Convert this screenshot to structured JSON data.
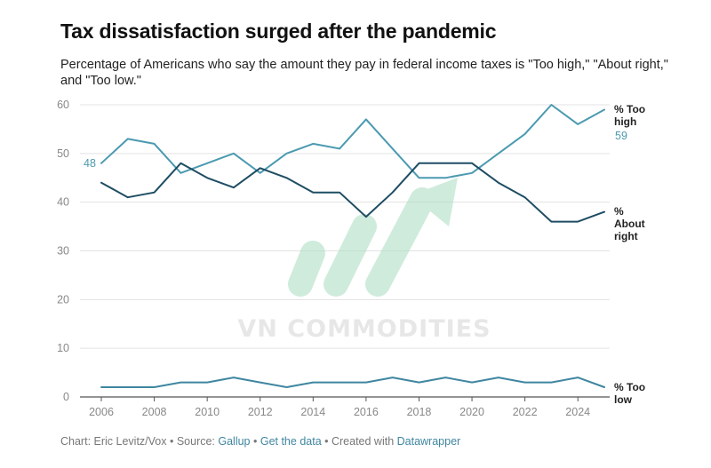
{
  "header": {
    "title": "Tax dissatisfaction surged after the pandemic",
    "subtitle": "Percentage of Americans who say the amount they pay in federal income taxes is \"Too high,\" \"About right,\" and \"Too low.\""
  },
  "footer": {
    "chart_credit": "Chart: Eric Levitz/Vox",
    "sep1": " • Source: ",
    "source": "Gallup",
    "sep2": " • ",
    "get_data": "Get the data",
    "sep3": " • Created with ",
    "tool": "Datawrapper"
  },
  "watermark": {
    "text": "VN COMMODITIES"
  },
  "colors": {
    "too_high": "#4b9ab0",
    "about_right": "#1e4d63",
    "too_low": "#3f86a0",
    "grid": "#e3e3e3",
    "watermark_green": "#a8dcc0"
  },
  "chart_data": {
    "type": "line",
    "title": "Tax dissatisfaction surged after the pandemic",
    "xlabel": "",
    "ylabel": "",
    "ylim": [
      0,
      60
    ],
    "xlim": [
      2006,
      2025
    ],
    "yticks": [
      0,
      10,
      20,
      30,
      40,
      50,
      60
    ],
    "xticks": [
      2006,
      2008,
      2010,
      2012,
      2014,
      2016,
      2018,
      2020,
      2022,
      2024
    ],
    "grid": true,
    "x": [
      2006,
      2007,
      2008,
      2009,
      2010,
      2011,
      2012,
      2013,
      2014,
      2015,
      2016,
      2017,
      2018,
      2019,
      2020,
      2021,
      2022,
      2023,
      2024,
      2025
    ],
    "series": [
      {
        "name": "% Too high",
        "label_lines": [
          "% Too",
          "high"
        ],
        "end_value_label": "59",
        "start_value_label": "48",
        "values": [
          48,
          53,
          52,
          46,
          48,
          50,
          46,
          50,
          52,
          51,
          57,
          51,
          45,
          45,
          46,
          50,
          54,
          60,
          56,
          59
        ]
      },
      {
        "name": "% About right",
        "label_lines": [
          "%",
          "About",
          "right"
        ],
        "values": [
          44,
          41,
          42,
          48,
          45,
          43,
          47,
          45,
          42,
          42,
          37,
          42,
          48,
          48,
          48,
          44,
          41,
          36,
          36,
          38
        ]
      },
      {
        "name": "% Too low",
        "label_lines": [
          "% Too",
          "low"
        ],
        "values": [
          2,
          2,
          2,
          3,
          3,
          4,
          3,
          2,
          3,
          3,
          3,
          4,
          3,
          4,
          3,
          4,
          3,
          3,
          4,
          2
        ]
      }
    ]
  }
}
